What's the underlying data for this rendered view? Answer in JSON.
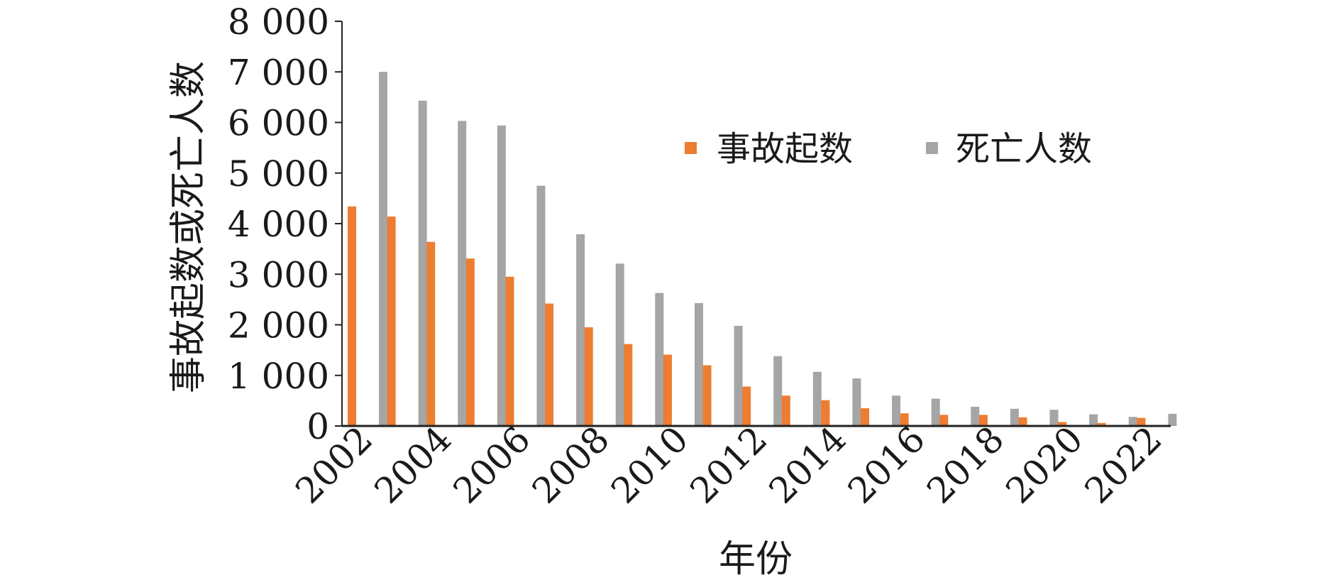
{
  "chart_data": {
    "type": "bar",
    "title": "",
    "xlabel": "年份",
    "ylabel": "事故起数或死亡人数",
    "ylim": [
      0,
      8000
    ],
    "yticks": [
      0,
      1000,
      2000,
      3000,
      4000,
      5000,
      6000,
      7000,
      8000
    ],
    "ytick_labels": [
      "0",
      "1 000",
      "2 000",
      "3 000",
      "4 000",
      "5 000",
      "6 000",
      "7 000",
      "8 000"
    ],
    "categories": [
      "2002",
      "2003",
      "2004",
      "2005",
      "2006",
      "2007",
      "2008",
      "2009",
      "2010",
      "2011",
      "2012",
      "2013",
      "2014",
      "2015",
      "2016",
      "2017",
      "2018",
      "2019",
      "2020",
      "2021",
      "2022"
    ],
    "xtick_labels": [
      "2002",
      "2004",
      "2006",
      "2008",
      "2010",
      "2012",
      "2014",
      "2016",
      "2018",
      "2020",
      "2022"
    ],
    "grid": false,
    "legend_position": "top-right",
    "series": [
      {
        "name": "事故起数",
        "color": "#ED7D31",
        "values": [
          4340,
          4140,
          3640,
          3310,
          2950,
          2420,
          1950,
          1620,
          1410,
          1200,
          780,
          600,
          510,
          350,
          250,
          220,
          220,
          170,
          80,
          60,
          160
        ]
      },
      {
        "name": "死亡人数",
        "color": "#A5A5A5",
        "values": [
          7000,
          6430,
          6030,
          5940,
          4750,
          3790,
          3210,
          2630,
          2430,
          1980,
          1380,
          1070,
          940,
          600,
          540,
          380,
          340,
          320,
          230,
          180,
          240
        ]
      }
    ]
  }
}
